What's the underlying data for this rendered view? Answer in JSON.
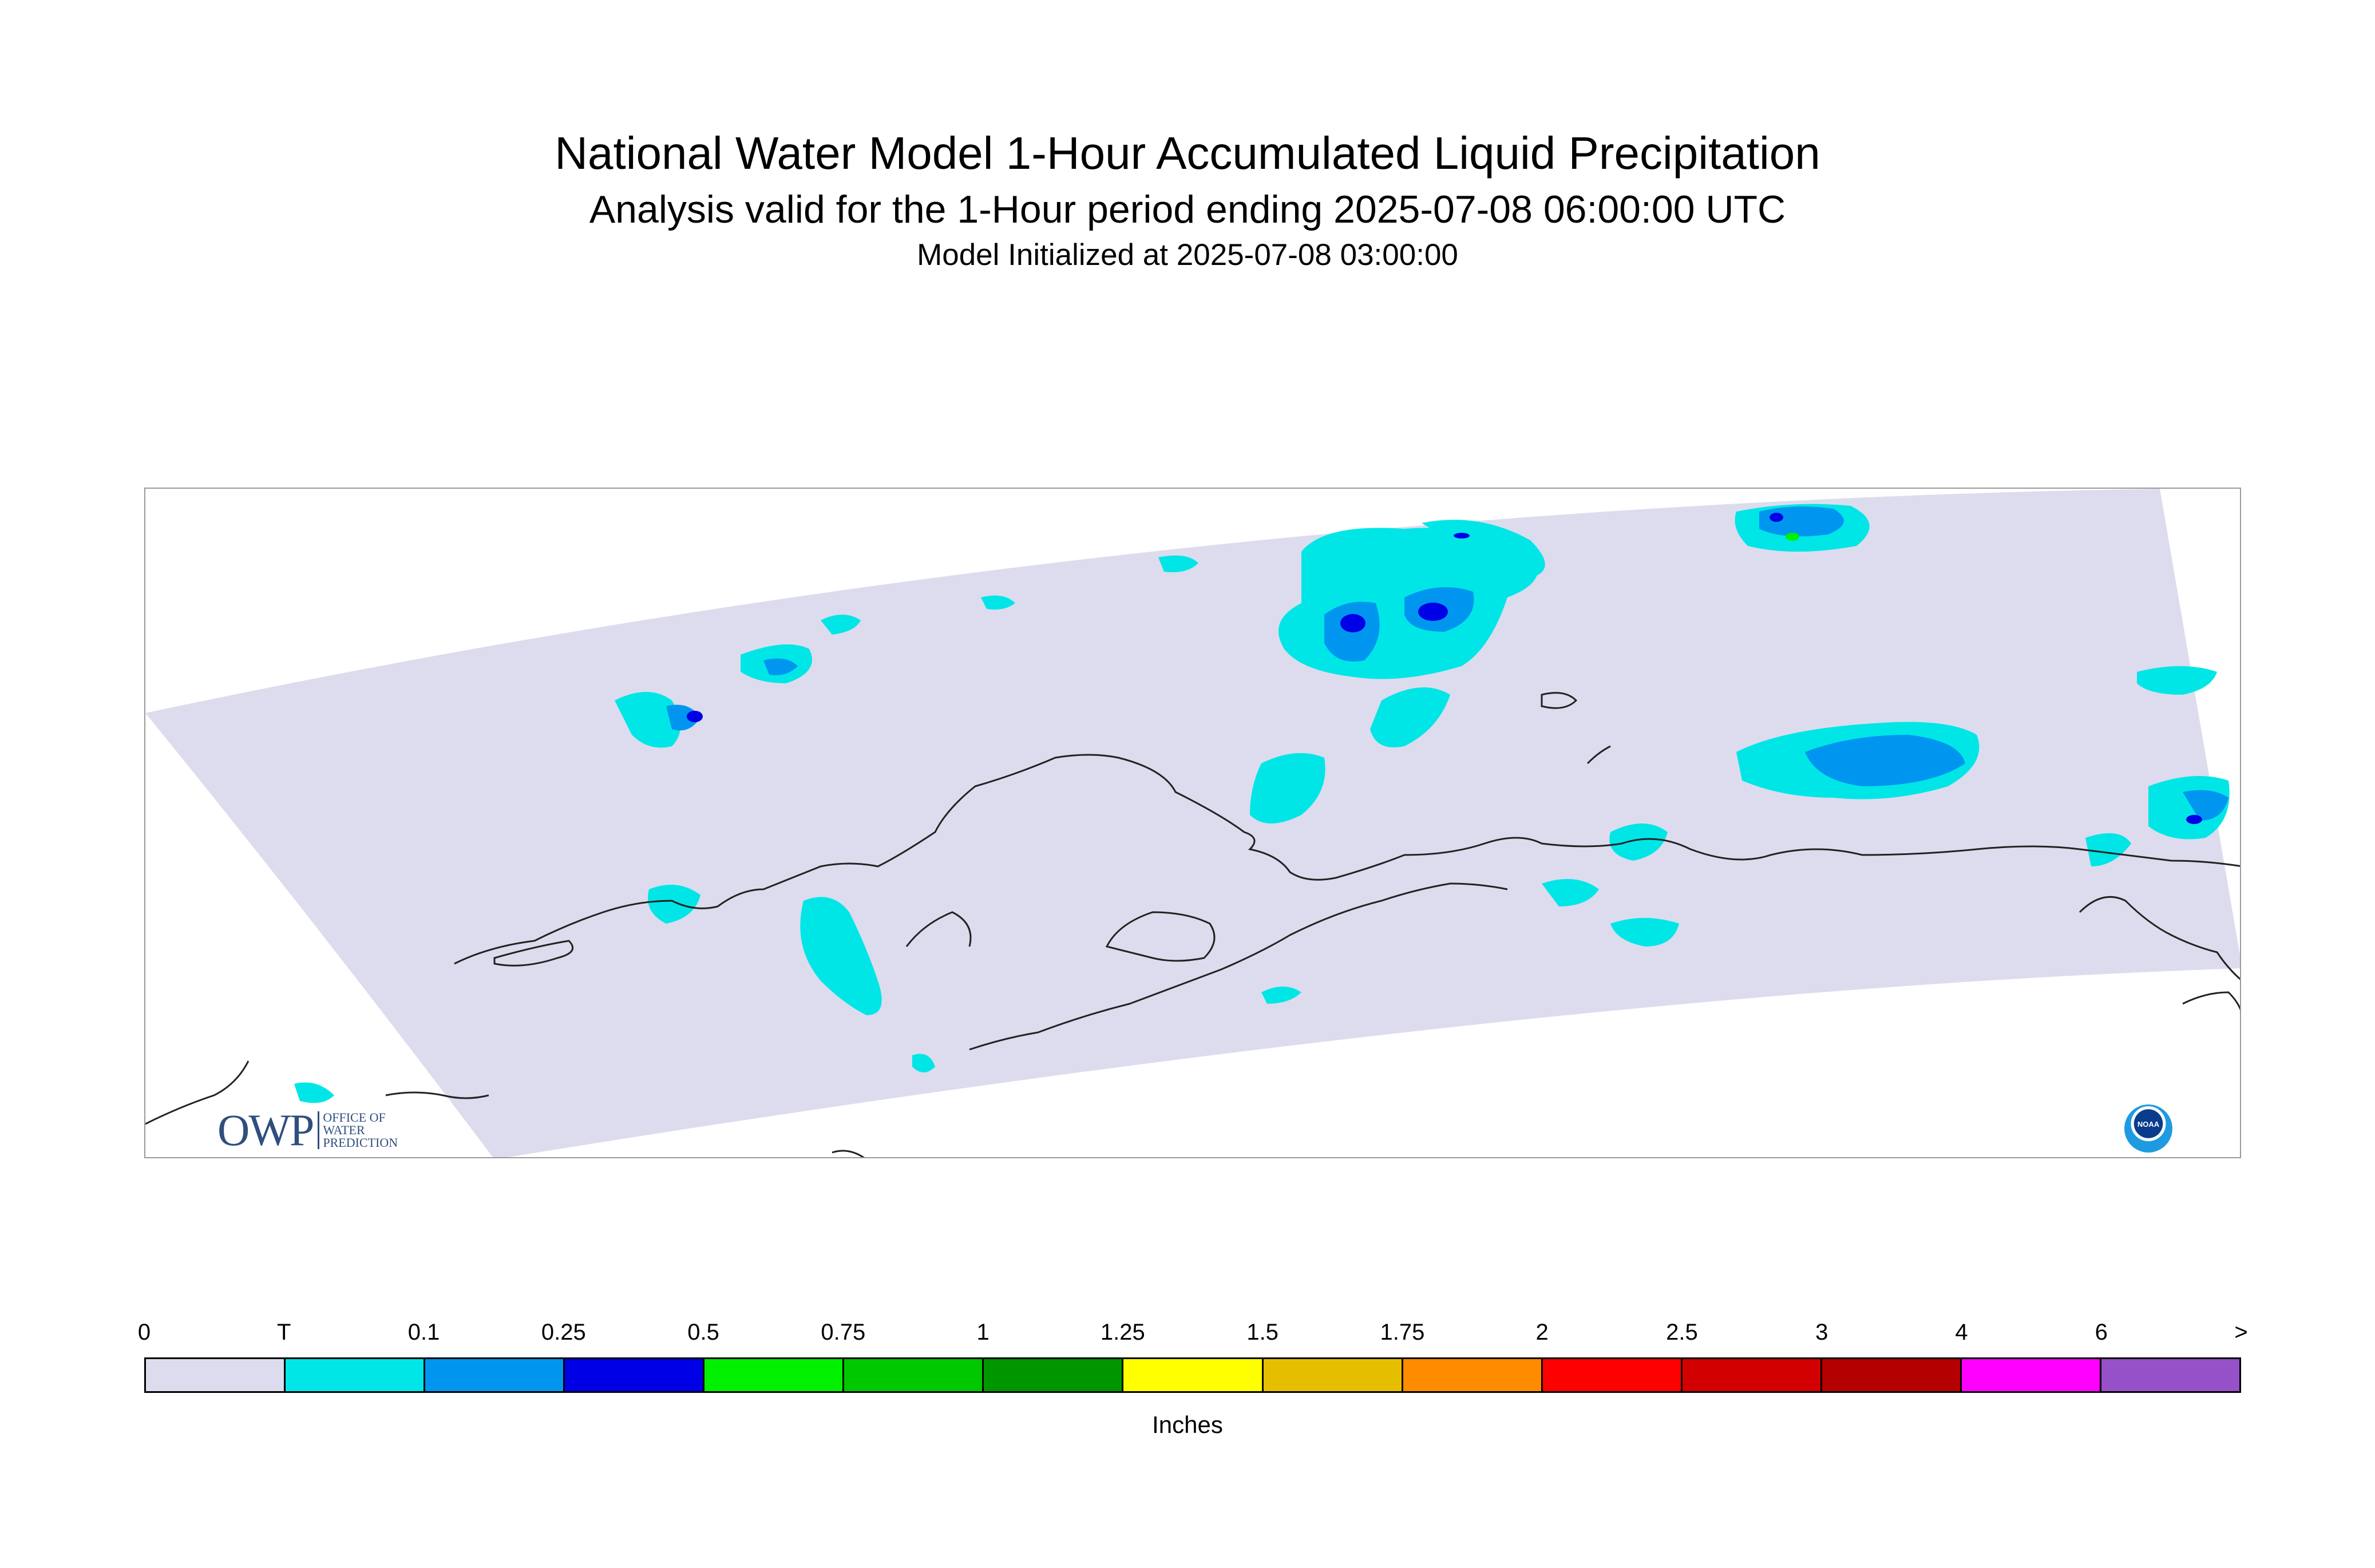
{
  "header": {
    "title": "National Water Model 1-Hour Accumulated Liquid Precipitation",
    "subtitle": "Analysis valid for the 1-Hour period ending 2025-07-08 06:00:00 UTC",
    "init_line": "Model Initialized at 2025-07-08 03:00:00"
  },
  "map": {
    "domain_fill": "#dcdcee",
    "coastline_color": "#222222",
    "frame_color": "#9a9a9a"
  },
  "logos": {
    "owp": {
      "letters": "OWP",
      "line1": "OFFICE OF",
      "line2": "WATER",
      "line3": "PREDICTION"
    },
    "noaa": {
      "text": "NOAA"
    }
  },
  "legend": {
    "units": "Inches",
    "tick_labels": [
      "0",
      "T",
      "0.1",
      "0.25",
      "0.5",
      "0.75",
      "1",
      "1.25",
      "1.5",
      "1.75",
      "2",
      "2.5",
      "3",
      "4",
      "6",
      ">"
    ],
    "colors": [
      "#dcdcee",
      "#00e6e6",
      "#0096f0",
      "#0000e6",
      "#00f000",
      "#00c800",
      "#009600",
      "#ffff00",
      "#e6be00",
      "#ff8c00",
      "#ff0000",
      "#d20000",
      "#b40000",
      "#ff00ff",
      "#9650c8"
    ]
  }
}
